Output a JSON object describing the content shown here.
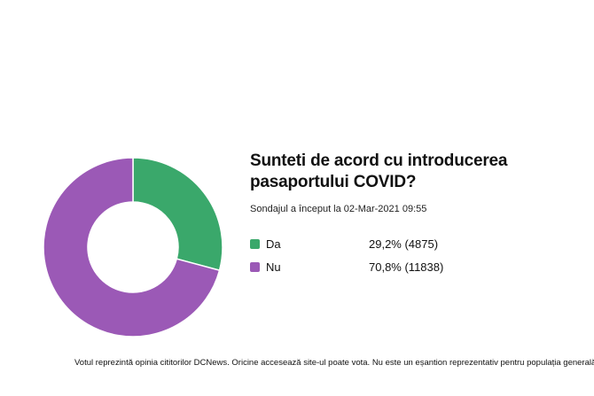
{
  "poll": {
    "title": "Sunteti de acord cu introducerea pasaportului COVID?",
    "started": "Sondajul a început la 02-Mar-2021 09:55",
    "options": [
      {
        "label": "Da",
        "value_text": "29,2% (4875)",
        "color": "#3aa86b"
      },
      {
        "label": "Nu",
        "value_text": "70,8% (11838)",
        "color": "#9b59b6"
      }
    ]
  },
  "footnote": "Votul reprezintă opinia cititorilor DCNews. Oricine accesează site-ul poate vota. Nu este un eșantion reprezentativ pentru populația generală.",
  "chart_data": {
    "type": "pie",
    "categories": [
      "Da",
      "Nu"
    ],
    "values": [
      4875,
      11838
    ],
    "percentages": [
      29.2,
      70.8
    ],
    "colors": [
      "#3aa86b",
      "#9b59b6"
    ],
    "title": "",
    "donut": true
  }
}
